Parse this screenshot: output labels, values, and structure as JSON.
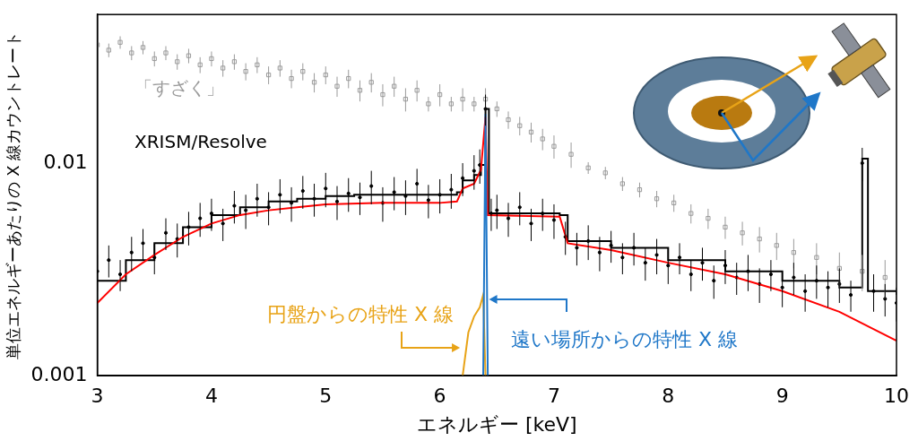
{
  "chart_data": {
    "type": "scatter",
    "xlabel": "エネルギー [keV]",
    "ylabel": "単位エネルギーあたりの X 線カウントレート",
    "xlim": [
      3,
      10
    ],
    "xticks": [
      3,
      4,
      5,
      6,
      7,
      8,
      9,
      10
    ],
    "ylim": [
      0.001,
      0.05
    ],
    "yticks": [
      0.001,
      0.01
    ],
    "log": "y",
    "grid": false,
    "series": [
      {
        "name": "「すざく」",
        "type": "scatter",
        "color": "#9a9a9a",
        "marker": "square",
        "x": [
          3.0,
          3.1,
          3.2,
          3.3,
          3.4,
          3.5,
          3.6,
          3.7,
          3.8,
          3.9,
          4.0,
          4.1,
          4.2,
          4.3,
          4.4,
          4.5,
          4.6,
          4.7,
          4.8,
          4.9,
          5.0,
          5.1,
          5.2,
          5.3,
          5.4,
          5.5,
          5.6,
          5.7,
          5.8,
          5.9,
          6.0,
          6.1,
          6.2,
          6.3,
          6.4,
          6.5,
          6.6,
          6.7,
          6.8,
          6.9,
          7.0,
          7.15,
          7.3,
          7.45,
          7.6,
          7.75,
          7.9,
          8.05,
          8.2,
          8.35,
          8.5,
          8.65,
          8.8,
          8.95,
          9.1,
          9.3,
          9.5,
          9.7,
          9.9
        ],
        "values": [
          0.036,
          0.034,
          0.037,
          0.033,
          0.035,
          0.031,
          0.033,
          0.03,
          0.032,
          0.029,
          0.031,
          0.028,
          0.03,
          0.027,
          0.029,
          0.026,
          0.028,
          0.025,
          0.027,
          0.024,
          0.026,
          0.023,
          0.025,
          0.022,
          0.024,
          0.021,
          0.023,
          0.02,
          0.022,
          0.019,
          0.021,
          0.019,
          0.02,
          0.019,
          0.02,
          0.018,
          0.016,
          0.015,
          0.014,
          0.013,
          0.012,
          0.011,
          0.0095,
          0.009,
          0.008,
          0.0075,
          0.0068,
          0.0065,
          0.0058,
          0.0055,
          0.005,
          0.0047,
          0.0044,
          0.0041,
          0.0038,
          0.0036,
          0.0032,
          0.0031,
          0.0029
        ],
        "errors": [
          0.0025,
          0.0025,
          0.0025,
          0.0025,
          0.0025,
          0.0025,
          0.0025,
          0.0025,
          0.0025,
          0.0025,
          0.0025,
          0.0025,
          0.0025,
          0.0025,
          0.0025,
          0.0025,
          0.0025,
          0.0025,
          0.0025,
          0.0025,
          0.0025,
          0.0025,
          0.0025,
          0.0025,
          0.0025,
          0.0025,
          0.0025,
          0.0025,
          0.0025,
          0.0015,
          0.0025,
          0.0015,
          0.0025,
          0.0015,
          0.0025,
          0.0015,
          0.0015,
          0.0015,
          0.0015,
          0.0015,
          0.0015,
          0.0015,
          0.0006,
          0.0006,
          0.0006,
          0.0006,
          0.0006,
          0.0006,
          0.0006,
          0.0006,
          0.0006,
          0.0006,
          0.0006,
          0.0006,
          0.0006,
          0.0006,
          0.0006,
          0.0006,
          0.0006
        ]
      },
      {
        "name": "XRISM/Resolve",
        "type": "scatter",
        "color": "#000000",
        "marker": "circle",
        "x": [
          3.0,
          3.1,
          3.2,
          3.3,
          3.4,
          3.5,
          3.6,
          3.7,
          3.8,
          3.9,
          4.0,
          4.1,
          4.2,
          4.3,
          4.4,
          4.5,
          4.6,
          4.7,
          4.8,
          4.9,
          5.0,
          5.1,
          5.2,
          5.3,
          5.4,
          5.5,
          5.6,
          5.7,
          5.8,
          5.9,
          6.0,
          6.1,
          6.2,
          6.3,
          6.35,
          6.4,
          6.45,
          6.5,
          6.6,
          6.7,
          6.8,
          6.9,
          7.0,
          7.1,
          7.2,
          7.3,
          7.4,
          7.5,
          7.6,
          7.7,
          7.8,
          7.9,
          8.0,
          8.1,
          8.2,
          8.3,
          8.4,
          8.5,
          8.6,
          8.7,
          8.8,
          8.9,
          9.0,
          9.1,
          9.2,
          9.3,
          9.4,
          9.5,
          9.6,
          9.7,
          9.8,
          9.9,
          10.0
        ],
        "values": [
          0.0031,
          0.0035,
          0.003,
          0.0038,
          0.0042,
          0.0036,
          0.0047,
          0.0044,
          0.005,
          0.0055,
          0.0058,
          0.0052,
          0.0063,
          0.006,
          0.0068,
          0.0062,
          0.0071,
          0.0065,
          0.0074,
          0.0068,
          0.0076,
          0.0066,
          0.0072,
          0.0069,
          0.0078,
          0.0065,
          0.0073,
          0.007,
          0.008,
          0.0067,
          0.0071,
          0.0075,
          0.0085,
          0.0092,
          0.0098,
          0.018,
          0.0058,
          0.006,
          0.0055,
          0.0062,
          0.0052,
          0.0058,
          0.0054,
          0.0045,
          0.004,
          0.0043,
          0.0038,
          0.0041,
          0.0036,
          0.004,
          0.0034,
          0.0037,
          0.0033,
          0.0036,
          0.003,
          0.0034,
          0.0028,
          0.0033,
          0.0029,
          0.0031,
          0.0027,
          0.003,
          0.0026,
          0.0029,
          0.0025,
          0.0028,
          0.0026,
          0.0027,
          0.0024,
          0.01,
          0.0025,
          0.0023,
          0.0022
        ],
        "errors": [
          0.0006,
          0.0006,
          0.0005,
          0.0007,
          0.0007,
          0.0006,
          0.0008,
          0.0008,
          0.0009,
          0.001,
          0.001,
          0.0009,
          0.0011,
          0.0011,
          0.0012,
          0.0011,
          0.0013,
          0.0012,
          0.0013,
          0.0012,
          0.0014,
          0.0012,
          0.0013,
          0.0012,
          0.0014,
          0.0012,
          0.0013,
          0.0013,
          0.0014,
          0.0012,
          0.0013,
          0.0014,
          0.0015,
          0.0017,
          0.0018,
          0.003,
          0.001,
          0.0011,
          0.001,
          0.0011,
          0.0009,
          0.001,
          0.001,
          0.0008,
          0.0007,
          0.0008,
          0.0007,
          0.0007,
          0.0006,
          0.0007,
          0.0006,
          0.0007,
          0.0006,
          0.0006,
          0.0005,
          0.0006,
          0.0005,
          0.0006,
          0.0005,
          0.0006,
          0.0005,
          0.0005,
          0.0005,
          0.0005,
          0.0005,
          0.0005,
          0.0005,
          0.0005,
          0.0004,
          0.0018,
          0.0005,
          0.0004,
          0.0004
        ]
      },
      {
        "type": "line",
        "color": "#000000",
        "line_style": "step",
        "x": [
          3.0,
          3.25,
          3.5,
          3.75,
          4.0,
          4.25,
          4.5,
          4.75,
          5.0,
          5.25,
          5.5,
          5.75,
          6.0,
          6.15,
          6.2,
          6.3,
          6.36,
          6.4,
          6.43,
          6.7,
          7.05,
          7.12,
          7.5,
          8.0,
          8.5,
          9.0,
          9.5,
          9.65,
          9.7,
          9.75,
          10.0
        ],
        "values": [
          0.0028,
          0.0035,
          0.0042,
          0.005,
          0.0057,
          0.0062,
          0.0066,
          0.0068,
          0.007,
          0.0071,
          0.0071,
          0.0071,
          0.0071,
          0.0073,
          0.0083,
          0.0088,
          0.0098,
          0.018,
          0.0058,
          0.0058,
          0.0057,
          0.0043,
          0.004,
          0.0035,
          0.0031,
          0.0028,
          0.0026,
          0.0026,
          0.0105,
          0.0025,
          0.0024
        ]
      },
      {
        "type": "line",
        "color": "#ff0000",
        "line_style": "solid",
        "x": [
          3.0,
          3.25,
          3.5,
          3.75,
          4.0,
          4.25,
          4.5,
          4.75,
          5.0,
          5.5,
          6.0,
          6.15,
          6.2,
          6.3,
          6.36,
          6.4,
          6.42,
          7.05,
          7.12,
          7.5,
          8.0,
          8.5,
          9.0,
          9.5,
          10.0
        ],
        "values": [
          0.0022,
          0.003,
          0.0037,
          0.0045,
          0.0052,
          0.0057,
          0.006,
          0.0062,
          0.0064,
          0.0065,
          0.0065,
          0.0066,
          0.0076,
          0.008,
          0.0093,
          0.0165,
          0.0057,
          0.0056,
          0.0042,
          0.0039,
          0.0034,
          0.003,
          0.0025,
          0.002,
          0.00146
        ]
      },
      {
        "name": "円盤からの特性 X 線",
        "type": "line",
        "color": "#e8a317",
        "line_style": "solid",
        "x": [
          6.2,
          6.25,
          6.3,
          6.35,
          6.38,
          6.4
        ],
        "values": [
          0.001,
          0.0016,
          0.0019,
          0.0021,
          0.0024,
          0.001
        ]
      },
      {
        "name": "遠い場所からの特性 X 線",
        "type": "line",
        "color": "#1f77c8",
        "line_style": "solid",
        "x": [
          6.38,
          6.4,
          6.42
        ],
        "values": [
          0.001,
          0.017,
          0.001
        ]
      }
    ]
  }
}
